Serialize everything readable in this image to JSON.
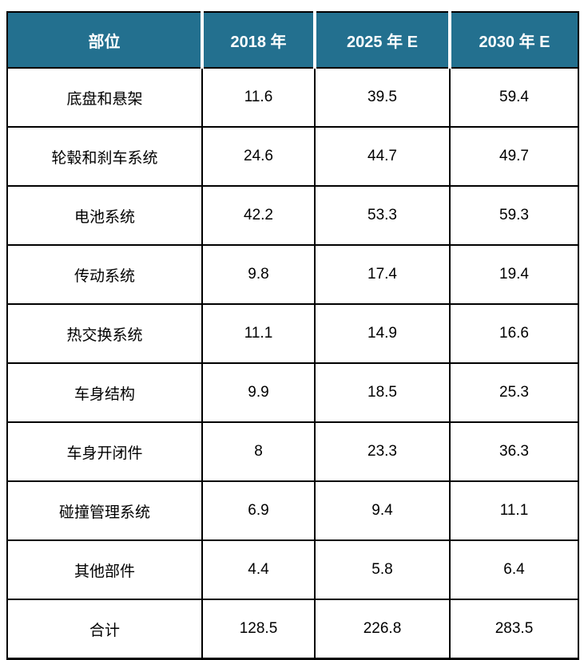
{
  "table": {
    "columns": [
      "部位",
      "2018 年",
      "2025 年 E",
      "2030 年 E"
    ],
    "rows": [
      {
        "label": "底盘和悬架",
        "values": [
          "11.6",
          "39.5",
          "59.4"
        ]
      },
      {
        "label": "轮毂和刹车系统",
        "values": [
          "24.6",
          "44.7",
          "49.7"
        ]
      },
      {
        "label": "电池系统",
        "values": [
          "42.2",
          "53.3",
          "59.3"
        ]
      },
      {
        "label": "传动系统",
        "values": [
          "9.8",
          "17.4",
          "19.4"
        ]
      },
      {
        "label": "热交换系统",
        "values": [
          "11.1",
          "14.9",
          "16.6"
        ]
      },
      {
        "label": "车身结构",
        "values": [
          "9.9",
          "18.5",
          "25.3"
        ]
      },
      {
        "label": "车身开闭件",
        "values": [
          "8",
          "23.3",
          "36.3"
        ]
      },
      {
        "label": "碰撞管理系统",
        "values": [
          "6.9",
          "9.4",
          "11.1"
        ]
      },
      {
        "label": "其他部件",
        "values": [
          "4.4",
          "5.8",
          "6.4"
        ]
      },
      {
        "label": "合计",
        "values": [
          "128.5",
          "226.8",
          "283.5"
        ]
      }
    ]
  },
  "chart_data": {
    "type": "table",
    "columns": [
      "部位",
      "2018 年",
      "2025 年 E",
      "2030 年 E"
    ],
    "rows": [
      [
        "底盘和悬架",
        11.6,
        39.5,
        59.4
      ],
      [
        "轮毂和刹车系统",
        24.6,
        44.7,
        49.7
      ],
      [
        "电池系统",
        42.2,
        53.3,
        59.3
      ],
      [
        "传动系统",
        9.8,
        17.4,
        19.4
      ],
      [
        "热交换系统",
        11.1,
        14.9,
        16.6
      ],
      [
        "车身结构",
        9.9,
        18.5,
        25.3
      ],
      [
        "车身开闭件",
        8,
        23.3,
        36.3
      ],
      [
        "碰撞管理系统",
        6.9,
        9.4,
        11.1
      ],
      [
        "其他部件",
        4.4,
        5.8,
        6.4
      ],
      [
        "合计",
        128.5,
        226.8,
        283.5
      ]
    ]
  },
  "colors": {
    "header_bg": "#23708F",
    "header_text": "#FFFFFF",
    "body_text": "#000000",
    "border_color": "#000000"
  }
}
